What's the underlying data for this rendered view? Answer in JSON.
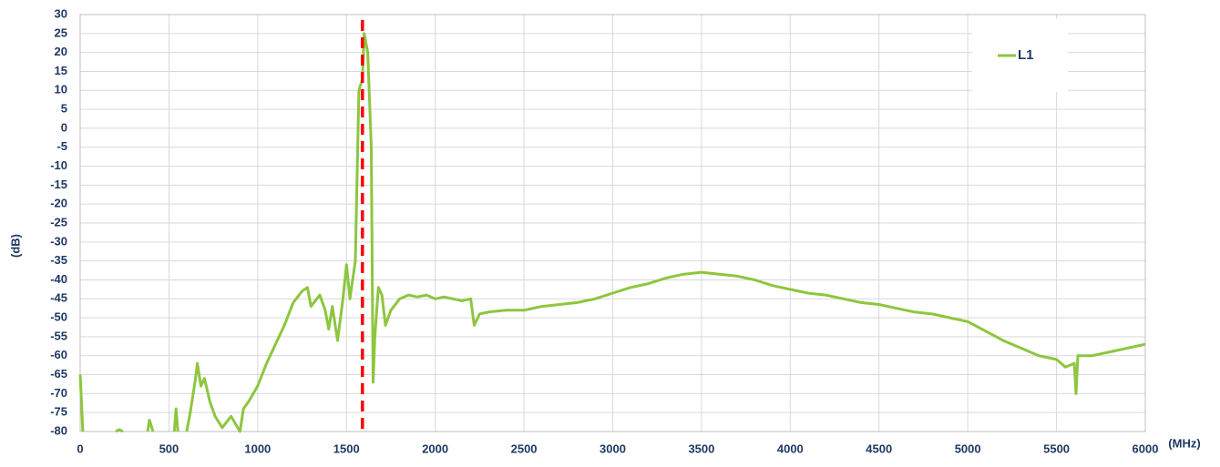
{
  "chart_data": {
    "type": "line",
    "ylabel": "(dB)",
    "xlabel": "(MHz)",
    "x": [
      0,
      15,
      100,
      200,
      220,
      240,
      300,
      380,
      390,
      410,
      480,
      530,
      540,
      550,
      590,
      600,
      620,
      650,
      660,
      680,
      700,
      730,
      760,
      800,
      850,
      900,
      920,
      950,
      1000,
      1050,
      1100,
      1150,
      1200,
      1250,
      1280,
      1300,
      1350,
      1380,
      1400,
      1420,
      1450,
      1480,
      1500,
      1520,
      1550,
      1570,
      1590,
      1600,
      1620,
      1640,
      1650,
      1660,
      1680,
      1700,
      1720,
      1750,
      1800,
      1850,
      1900,
      1950,
      2000,
      2050,
      2100,
      2150,
      2200,
      2220,
      2250,
      2300,
      2400,
      2500,
      2600,
      2700,
      2800,
      2900,
      3000,
      3100,
      3200,
      3300,
      3400,
      3500,
      3600,
      3700,
      3800,
      3900,
      4000,
      4100,
      4200,
      4300,
      4400,
      4500,
      4600,
      4700,
      4800,
      4900,
      5000,
      5100,
      5200,
      5300,
      5400,
      5500,
      5550,
      5600,
      5610,
      5620,
      5700,
      5800,
      5900,
      6000
    ],
    "series": [
      {
        "name": "L1",
        "color": "#8dc63f",
        "values": [
          -65,
          -80,
          null,
          -80,
          -79.5,
          -80,
          null,
          -80,
          -77,
          -80,
          null,
          -80,
          -74,
          -80,
          null,
          -80,
          -75,
          -66,
          -62,
          -68,
          -66,
          -72,
          -76,
          -79,
          -76,
          -80,
          -74,
          -72,
          -68,
          -62,
          -57,
          -52,
          -46,
          -43,
          -42,
          -47,
          -44,
          -48,
          -53,
          -47,
          -56,
          -45,
          -36,
          -45,
          -35,
          10,
          13,
          25,
          20,
          -5,
          -67,
          -55,
          -42,
          -44,
          -52,
          -48,
          -45,
          -44,
          -44.5,
          -44,
          -45,
          -44.5,
          -45,
          -45.5,
          -45,
          -52,
          -49,
          -48.5,
          -48,
          -48,
          -47,
          -46.5,
          -46,
          -45,
          -43.5,
          -42,
          -41,
          -39.5,
          -38.5,
          -38,
          -38.5,
          -39,
          -40,
          -41.5,
          -42.5,
          -43.5,
          -44,
          -45,
          -46,
          -46.5,
          -47.5,
          -48.5,
          -49,
          -50,
          -51,
          -53.5,
          -56,
          -58,
          -60,
          -61,
          -63,
          -62,
          -70,
          -60,
          -60,
          -59,
          -58,
          -57
        ]
      }
    ],
    "vline": {
      "x": 1590,
      "color": "#ff0000"
    },
    "xlim": [
      0,
      6000
    ],
    "xticks": [
      0,
      500,
      1000,
      1500,
      2000,
      2500,
      3000,
      3500,
      4000,
      4500,
      5000,
      5500,
      6000
    ],
    "ylim": [
      -80,
      30
    ],
    "yticks": [
      -80,
      -75,
      -70,
      -65,
      -60,
      -55,
      -50,
      -45,
      -40,
      -35,
      -30,
      -25,
      -20,
      -15,
      -10,
      -5,
      0,
      5,
      10,
      15,
      20,
      25,
      30
    ],
    "grid": true,
    "legend": "upper right"
  }
}
